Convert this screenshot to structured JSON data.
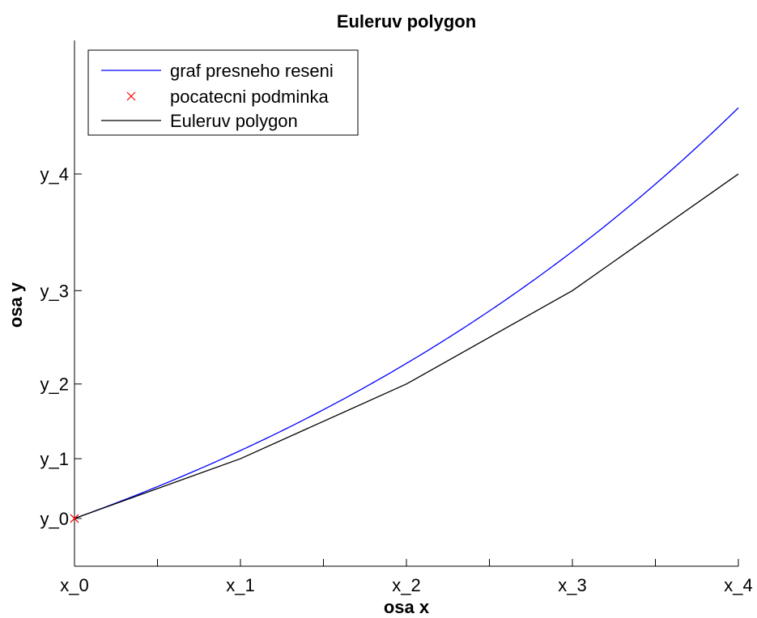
{
  "chart_data": {
    "type": "line",
    "title": "Euleruv polygon",
    "xlabel": "osa x",
    "ylabel": "osa y",
    "x_tick_labels": [
      "x_0",
      "x_1",
      "x_2",
      "x_3",
      "x_4"
    ],
    "y_tick_labels": [
      "y_0",
      "y_1",
      "y_2",
      "y_3",
      "y_4"
    ],
    "xlim": [
      0,
      1
    ],
    "ylim": [
      0.8,
      3.0
    ],
    "x_ticks": [
      0,
      0.25,
      0.5,
      0.75,
      1.0
    ],
    "x_minor_ticks": [
      0.125,
      0.375,
      0.625,
      0.875
    ],
    "y_ticks": [
      1.0,
      1.25,
      1.5625,
      1.953125,
      2.44140625
    ],
    "legend_position": "top-left",
    "grid": false,
    "series": [
      {
        "name": "graf presneho reseni",
        "color": "#0000ff",
        "marker": "none",
        "function": "exp(x)",
        "x": [
          0,
          0.05,
          0.1,
          0.15,
          0.2,
          0.25,
          0.3,
          0.35,
          0.4,
          0.45,
          0.5,
          0.55,
          0.6,
          0.65,
          0.7,
          0.75,
          0.8,
          0.85,
          0.9,
          0.95,
          1.0
        ],
        "y": [
          1.0,
          1.0513,
          1.1052,
          1.1618,
          1.2214,
          1.284,
          1.3499,
          1.4191,
          1.4918,
          1.5683,
          1.6487,
          1.7333,
          1.8221,
          1.9155,
          2.0138,
          2.117,
          2.2255,
          2.3396,
          2.4596,
          2.5857,
          2.7183
        ]
      },
      {
        "name": "pocatecni podminka",
        "color": "#ff0000",
        "marker": "x",
        "x": [
          0
        ],
        "y": [
          1.0
        ]
      },
      {
        "name": "Euleruv polygon",
        "color": "#000000",
        "marker": "none",
        "x": [
          0,
          0.25,
          0.5,
          0.75,
          1.0
        ],
        "y": [
          1.0,
          1.25,
          1.5625,
          1.953125,
          2.44140625
        ]
      }
    ]
  }
}
